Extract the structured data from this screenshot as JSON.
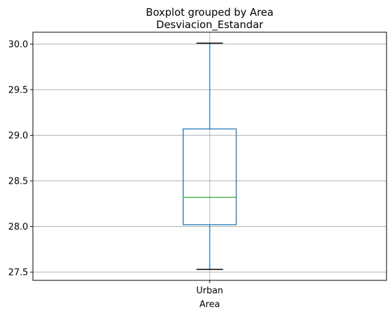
{
  "chart_data": {
    "type": "box",
    "suptitle": "Boxplot grouped by Area",
    "title": "Desviacion_Estandar",
    "xlabel": "Area",
    "ylabel": "",
    "categories": [
      "Urban"
    ],
    "boxes": [
      {
        "category": "Urban",
        "whisker_low": 27.53,
        "q1": 28.02,
        "median": 28.32,
        "q3": 29.07,
        "whisker_high": 30.01
      }
    ],
    "ylim": [
      27.41,
      30.13
    ],
    "yticks": [
      27.5,
      28.0,
      28.5,
      29.0,
      29.5,
      30.0
    ],
    "ytick_labels": [
      "27.5",
      "28.0",
      "28.5",
      "29.0",
      "29.5",
      "30.0"
    ],
    "grid": true,
    "colors": {
      "box": "#1f77b4",
      "median": "#2ca02c",
      "whisker_cap": "#000000",
      "grid": "#b0b0b0"
    }
  }
}
